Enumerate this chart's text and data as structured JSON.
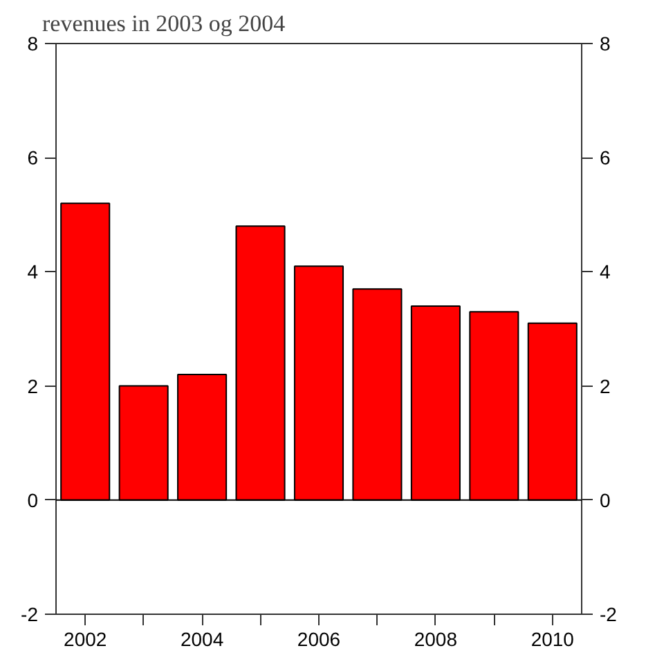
{
  "chart_data": {
    "type": "bar",
    "title": "revenues in 2003 og 2004",
    "x": [
      2002,
      2003,
      2004,
      2005,
      2006,
      2007,
      2008,
      2009,
      2010
    ],
    "values": [
      5.2,
      2.0,
      2.2,
      4.8,
      4.1,
      3.7,
      3.4,
      3.3,
      3.1
    ],
    "color": "#ff0000",
    "xlim": [
      2001.5,
      2010.5
    ],
    "xticks": [
      2002,
      {
        "value": 2003,
        "label": null
      },
      2004,
      {
        "value": 2005,
        "label": null
      },
      2006,
      {
        "value": 2007,
        "label": null
      },
      2008,
      {
        "value": 2009,
        "label": null
      },
      2010
    ],
    "ylim": [
      -2,
      8
    ],
    "yticks": [
      -2,
      0,
      2,
      4,
      6,
      8
    ],
    "y2lim": [
      -2,
      8
    ],
    "y2ticks": [
      -2,
      0,
      2,
      4,
      6,
      8
    ],
    "ref_lines": [
      {
        "axis": "y",
        "value": 0,
        "label": null
      }
    ]
  }
}
